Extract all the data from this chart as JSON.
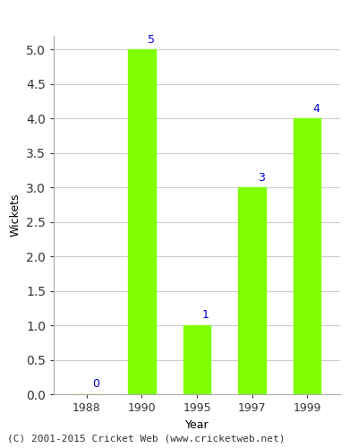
{
  "years": [
    "1988",
    "1990",
    "1995",
    "1997",
    "1999"
  ],
  "values": [
    0,
    5,
    1,
    3,
    4
  ],
  "bar_color": "#7fff00",
  "bar_edgecolor": "#7fff00",
  "xlabel": "Year",
  "ylabel": "Wickets",
  "ylim": [
    0,
    5.2
  ],
  "yticks": [
    0.0,
    0.5,
    1.0,
    1.5,
    2.0,
    2.5,
    3.0,
    3.5,
    4.0,
    4.5,
    5.0
  ],
  "annotation_color": "#0000cc",
  "annotation_fontsize": 9,
  "grid_color": "#cccccc",
  "background_color": "#ffffff",
  "footer_text": "(C) 2001-2015 Cricket Web (www.cricketweb.net)",
  "footer_fontsize": 8,
  "bar_width": 0.5
}
